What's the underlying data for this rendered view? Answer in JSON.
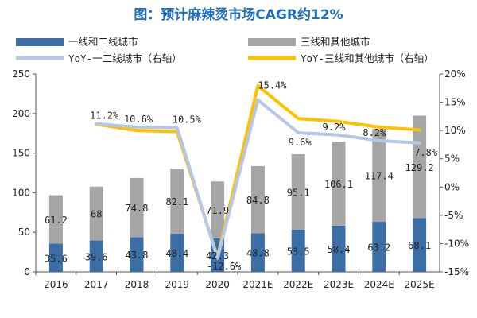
{
  "chart_data": {
    "type": "bar",
    "title": "图：预计麻辣烫市场CAGR约12%",
    "categories": [
      "2016",
      "2017",
      "2018",
      "2019",
      "2020",
      "2021E",
      "2022E",
      "2023E",
      "2024E",
      "2025E"
    ],
    "series": [
      {
        "name": "一线和二线城市",
        "kind": "bar",
        "axis": "left",
        "color": "#3b6ea5",
        "values": [
          35.6,
          39.6,
          43.8,
          48.4,
          42.3,
          48.8,
          53.5,
          58.4,
          63.2,
          68.1
        ],
        "labels": [
          "35.6",
          "39.6",
          "43.8",
          "48.4",
          "42.3",
          "48.8",
          "53.5",
          "58.4",
          "63.2",
          "68.1"
        ]
      },
      {
        "name": "三线和其他城市",
        "kind": "bar",
        "axis": "left",
        "color": "#a6a6a6",
        "values": [
          61.2,
          68,
          74.8,
          82.1,
          71.9,
          84.8,
          95.1,
          106.1,
          117.4,
          129.2
        ],
        "labels": [
          "61.2",
          "68",
          "74.8",
          "82.1",
          "71.9",
          "84.8",
          "95.1",
          "106.1",
          "117.4",
          "129.2"
        ]
      },
      {
        "name": "YoY-一二线城市（右轴）",
        "kind": "line",
        "axis": "right",
        "color": "#b4c7e7",
        "values": [
          null,
          11.2,
          10.6,
          10.5,
          -12.6,
          15.4,
          9.6,
          9.2,
          8.2,
          7.8
        ]
      },
      {
        "name": "YoY-三线和其他城市（右轴）",
        "kind": "line",
        "axis": "right",
        "color": "#ffc000",
        "values": [
          null,
          11.1,
          10.0,
          9.8,
          -12.4,
          17.9,
          12.1,
          11.6,
          10.6,
          10.1
        ]
      }
    ],
    "point_labels": [
      {
        "index": 1,
        "text": "11.2%"
      },
      {
        "index": 2,
        "text": "10.6%"
      },
      {
        "index": 3,
        "text": "10.5%"
      },
      {
        "index": 4,
        "text": "-12.6%"
      },
      {
        "index": 5,
        "text": "15.4%"
      },
      {
        "index": 6,
        "text": "9.6%"
      },
      {
        "index": 7,
        "text": "9.2%"
      },
      {
        "index": 8,
        "text": "8.2%"
      },
      {
        "index": 9,
        "text": "7.8%"
      }
    ],
    "y_left": {
      "min": 0,
      "max": 250,
      "ticks": [
        "0",
        "50",
        "100",
        "150",
        "200",
        "250"
      ]
    },
    "y_right": {
      "min": -15,
      "max": 20,
      "ticks": [
        "-15%",
        "-10%",
        "-5%",
        "0%",
        "5%",
        "10%",
        "15%",
        "20%"
      ]
    },
    "legend_position": "top"
  }
}
